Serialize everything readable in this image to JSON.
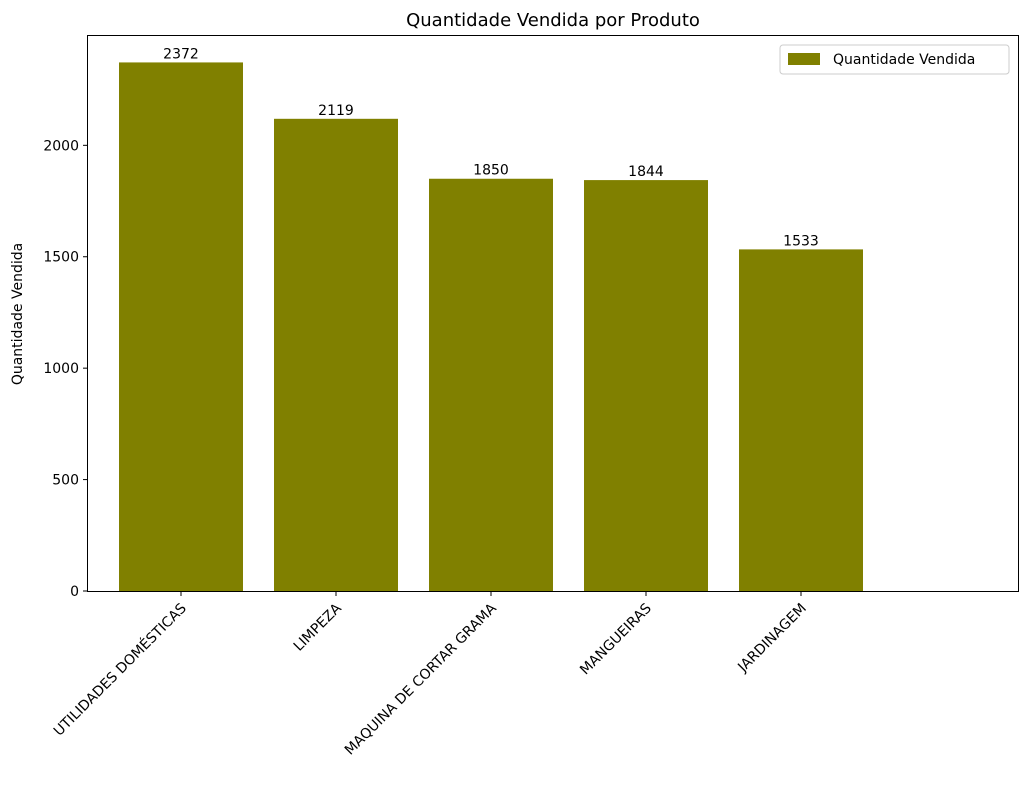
{
  "chart_data": {
    "type": "bar",
    "title": "Quantidade Vendida por Produto",
    "xlabel": "",
    "ylabel": "Quantidade Vendida",
    "categories": [
      "UTILIDADES DOMÉSTICAS",
      "LIMPEZA",
      "MAQUINA DE CORTAR GRAMA",
      "MANGUEIRAS",
      "JARDINAGEM"
    ],
    "series": [
      {
        "name": "Quantidade Vendida",
        "values": [
          2372,
          2119,
          1850,
          1844,
          1533
        ],
        "color": "#808000"
      }
    ],
    "data_labels": [
      "2372",
      "2119",
      "1850",
      "1844",
      "1533"
    ],
    "yticks": [
      0,
      500,
      1000,
      1500,
      2000
    ],
    "ylim": [
      0,
      2490.6
    ],
    "grid": false,
    "legend": {
      "position": "top-right",
      "entries": [
        "Quantidade Vendida"
      ]
    }
  }
}
